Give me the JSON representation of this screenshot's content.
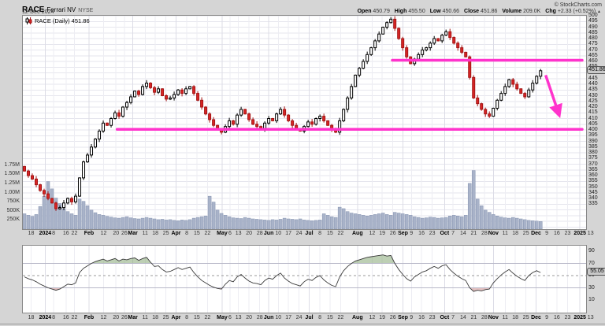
{
  "header": {
    "symbol": "RACE",
    "company": "Ferrari NV",
    "exchange": "NYSE",
    "date": "12-Dec-2024",
    "copyright": "© StockCharts.com",
    "legend": "RACE (Daily) 451.86",
    "quote": {
      "open_label": "Open",
      "open": "450.79",
      "high_label": "High",
      "high": "455.50",
      "low_label": "Low",
      "low": "450.66",
      "close_label": "Close",
      "close": "451.86",
      "volume_label": "Volume",
      "volume": "209.0K",
      "chg_label": "Chg",
      "chg": "+2.33 (+0.52%)",
      "chg_dir": "▲"
    }
  },
  "colors": {
    "candle_up_border": "#000000",
    "candle_up_fill": "#ffffff",
    "candle_down_border": "#a31515",
    "candle_down_fill": "#d92525",
    "volume_fill": "#a9b3c9",
    "volume_border": "#8593b0",
    "grid_minor": "#ededf3",
    "grid_month": "#dcdce6",
    "grid_h": "#e6e6ee",
    "annotation_pink": "#ff33cc",
    "osc_line": "#3a3a3a",
    "overbought_fill": "#86a877",
    "oversold_fill": "#c98585"
  },
  "chart_data": {
    "type": "candlestick",
    "title": "RACE (Daily)",
    "last_price": "451.86",
    "price_axis": {
      "min": 335,
      "max": 500,
      "step": 5
    },
    "volume_axis": {
      "ticks": [
        [
          "1.75M",
          1750
        ],
        [
          "1.50M",
          1500
        ],
        [
          "1.25M",
          1250
        ],
        [
          "1.00M",
          1000
        ],
        [
          "750K",
          750
        ],
        [
          "500K",
          500
        ],
        [
          "250K",
          250
        ]
      ]
    },
    "x_axis": {
      "labels": [
        [
          "18",
          0.012,
          0
        ],
        [
          "2024",
          0.037,
          1
        ],
        [
          "8",
          0.052,
          0
        ],
        [
          "16",
          0.074,
          0
        ],
        [
          "22",
          0.089,
          0
        ],
        [
          "Feb",
          0.115,
          1
        ],
        [
          "12",
          0.141,
          0
        ],
        [
          "20",
          0.163,
          0
        ],
        [
          "26",
          0.178,
          0
        ],
        [
          "Mar",
          0.193,
          1
        ],
        [
          "11",
          0.215,
          0
        ],
        [
          "18",
          0.233,
          0
        ],
        [
          "25",
          0.252,
          0
        ],
        [
          "Apr",
          0.27,
          1
        ],
        [
          "8",
          0.289,
          0
        ],
        [
          "15",
          0.307,
          0
        ],
        [
          "22",
          0.326,
          0
        ],
        [
          "May",
          0.352,
          1
        ],
        [
          "6",
          0.366,
          0
        ],
        [
          "13",
          0.381,
          0
        ],
        [
          "20",
          0.4,
          0
        ],
        [
          "28",
          0.419,
          0
        ],
        [
          "Jun",
          0.435,
          1
        ],
        [
          "10",
          0.452,
          0
        ],
        [
          "17",
          0.47,
          0
        ],
        [
          "24",
          0.489,
          0
        ],
        [
          "Jul",
          0.507,
          1
        ],
        [
          "8",
          0.526,
          0
        ],
        [
          "15",
          0.544,
          0
        ],
        [
          "22",
          0.563,
          0
        ],
        [
          "Aug",
          0.593,
          1
        ],
        [
          "12",
          0.619,
          0
        ],
        [
          "19",
          0.637,
          0
        ],
        [
          "26",
          0.656,
          0
        ],
        [
          "Sep",
          0.674,
          1
        ],
        [
          "9",
          0.689,
          0
        ],
        [
          "16",
          0.707,
          0
        ],
        [
          "23",
          0.726,
          0
        ],
        [
          "Oct",
          0.748,
          1
        ],
        [
          "7",
          0.763,
          0
        ],
        [
          "14",
          0.781,
          0
        ],
        [
          "21",
          0.8,
          0
        ],
        [
          "28",
          0.819,
          0
        ],
        [
          "Nov",
          0.835,
          1
        ],
        [
          "11",
          0.856,
          0
        ],
        [
          "18",
          0.874,
          0
        ],
        [
          "25",
          0.893,
          0
        ],
        [
          "Dec",
          0.911,
          1
        ],
        [
          "9",
          0.93,
          0
        ],
        [
          "16",
          0.948,
          0
        ],
        [
          "23",
          0.967,
          0
        ],
        [
          "2025",
          0.989,
          1
        ],
        [
          "13",
          1.008,
          0
        ]
      ]
    },
    "candles": {
      "first_open": 368,
      "span_fraction": 0.919,
      "closes": [
        364,
        360,
        357,
        352,
        347,
        344,
        340,
        336,
        331,
        332,
        336,
        340,
        337,
        342,
        358,
        372,
        378,
        385,
        392,
        399,
        406,
        404,
        410,
        415,
        412,
        420,
        424,
        429,
        434,
        431,
        438,
        441,
        437,
        433,
        436,
        430,
        427,
        428,
        431,
        435,
        432,
        436,
        438,
        432,
        426,
        420,
        414,
        409,
        404,
        400,
        398,
        403,
        408,
        405,
        413,
        418,
        414,
        409,
        405,
        403,
        401,
        406,
        410,
        408,
        414,
        418,
        413,
        408,
        404,
        401,
        399,
        403,
        407,
        405,
        410,
        412,
        408,
        404,
        400,
        398,
        408,
        418,
        428,
        438,
        448,
        454,
        460,
        466,
        472,
        478,
        484,
        490,
        494,
        497,
        489,
        480,
        472,
        464,
        458,
        462,
        466,
        470,
        472,
        476,
        480,
        478,
        483,
        486,
        481,
        476,
        472,
        468,
        464,
        446,
        428,
        423,
        418,
        414,
        412,
        419,
        426,
        432,
        438,
        444,
        440,
        436,
        432,
        429,
        435,
        441,
        447,
        451.86
      ],
      "volumes_k": [
        420,
        380,
        350,
        400,
        620,
        900,
        1300,
        1100,
        850,
        700,
        560,
        480,
        420,
        380,
        820,
        760,
        640,
        520,
        450,
        400,
        380,
        350,
        330,
        310,
        300,
        320,
        340,
        310,
        290,
        280,
        300,
        320,
        300,
        280,
        260,
        270,
        250,
        260,
        240,
        230,
        250,
        240,
        260,
        300,
        320,
        340,
        360,
        900,
        740,
        520,
        430,
        380,
        340,
        310,
        300,
        290,
        320,
        300,
        280,
        270,
        260,
        250,
        240,
        260,
        250,
        270,
        300,
        280,
        270,
        260,
        280,
        250,
        240,
        230,
        240,
        250,
        420,
        380,
        340,
        320,
        600,
        560,
        480,
        440,
        420,
        400,
        380,
        360,
        380,
        400,
        420,
        440,
        400,
        380,
        460,
        440,
        420,
        400,
        380,
        340,
        320,
        300,
        310,
        330,
        320,
        300,
        310,
        320,
        360,
        380,
        360,
        340,
        380,
        1250,
        1600,
        820,
        640,
        520,
        460,
        400,
        360,
        330,
        310,
        300,
        320,
        300,
        280,
        260,
        240,
        230,
        220,
        209
      ]
    },
    "oscillator": {
      "ticks": [
        90,
        70,
        50,
        30,
        10
      ],
      "overbought": 70,
      "oversold": 30,
      "midline": 50,
      "current": "55.05",
      "values": [
        48,
        45,
        43,
        40,
        36,
        33,
        30,
        28,
        26,
        28,
        32,
        36,
        35,
        38,
        55,
        62,
        66,
        70,
        73,
        75,
        77,
        74,
        76,
        78,
        74,
        77,
        76,
        78,
        79,
        75,
        78,
        80,
        72,
        65,
        66,
        60,
        56,
        57,
        60,
        63,
        60,
        62,
        64,
        55,
        48,
        42,
        38,
        34,
        31,
        29,
        28,
        36,
        42,
        40,
        48,
        52,
        46,
        41,
        38,
        37,
        35,
        42,
        46,
        44,
        50,
        54,
        46,
        41,
        37,
        35,
        33,
        40,
        44,
        42,
        47,
        50,
        43,
        38,
        34,
        32,
        48,
        58,
        65,
        70,
        74,
        76,
        78,
        80,
        81,
        82,
        83,
        84,
        82,
        83,
        70,
        60,
        52,
        45,
        41,
        48,
        52,
        56,
        58,
        62,
        65,
        62,
        66,
        68,
        60,
        54,
        49,
        45,
        42,
        30,
        24,
        26,
        25,
        27,
        28,
        38,
        45,
        51,
        56,
        60,
        54,
        49,
        45,
        42,
        50,
        55,
        58,
        55.05
      ]
    },
    "annotations": {
      "resistance_price": 461,
      "resistance_x": [
        0.655,
        0.993
      ],
      "support_price": 400.5,
      "support_x": [
        0.165,
        0.993
      ],
      "arrow": {
        "x": [
          0.928,
          0.95
        ],
        "price": [
          448,
          416
        ]
      }
    }
  }
}
